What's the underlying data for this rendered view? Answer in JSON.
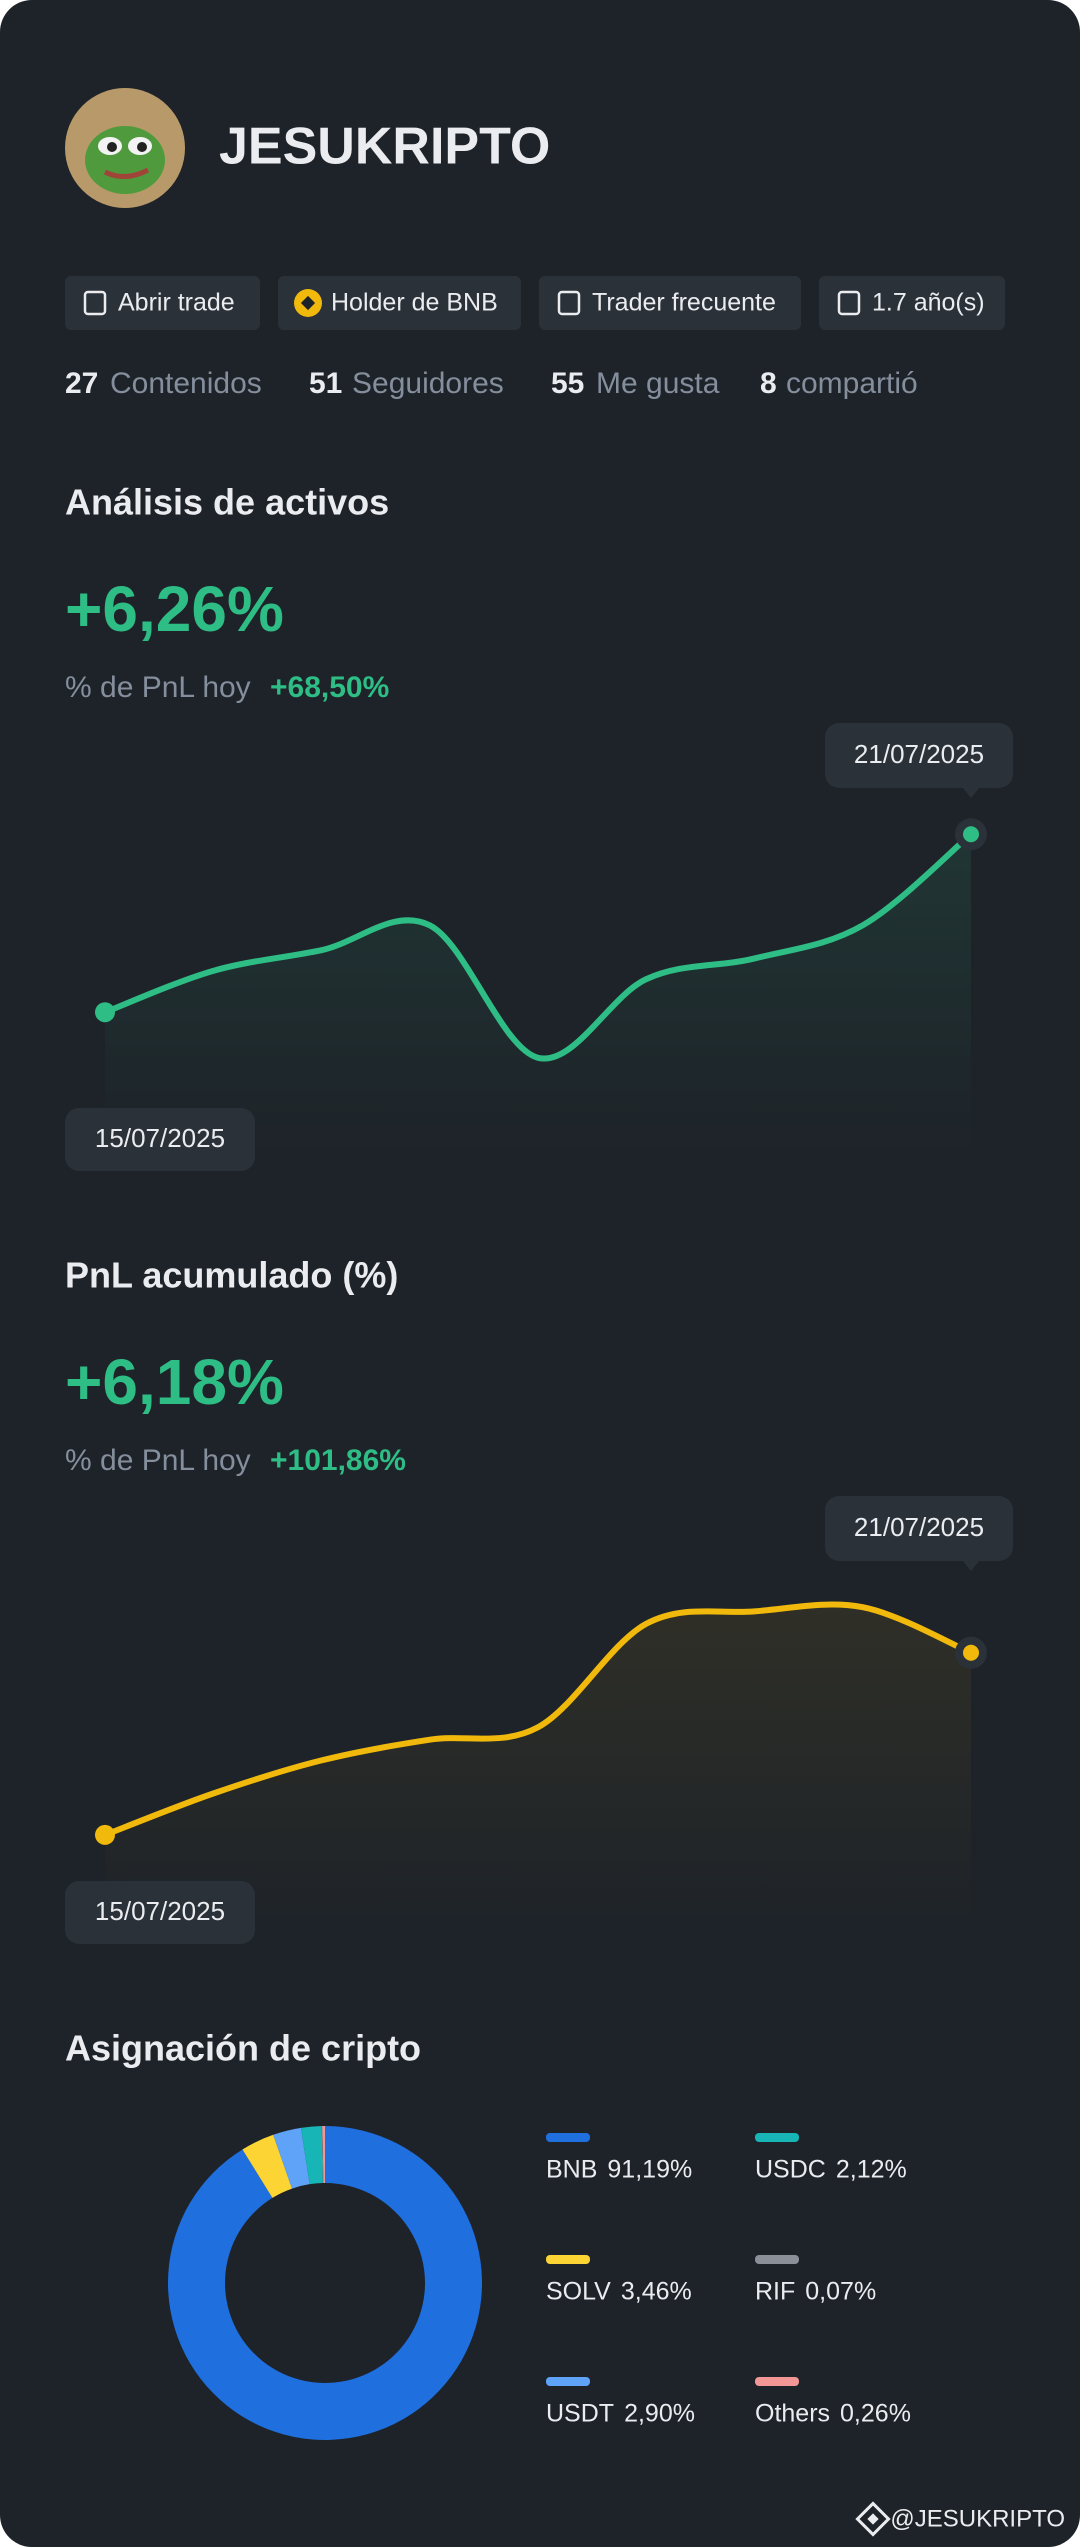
{
  "profile": {
    "name": "JESUKRIPTO",
    "badges": [
      "Abrir trade",
      "Holder de BNB",
      "Trader frecuente",
      "1.7 año(s)"
    ],
    "stats": [
      {
        "value": 27,
        "label": "Contenidos"
      },
      {
        "value": 51,
        "label": "Seguidores"
      },
      {
        "value": 55,
        "label": "Me gusta"
      },
      {
        "value": 8,
        "label": "compartió"
      }
    ]
  },
  "sections": [
    {
      "title": "Análisis de activos",
      "headline": "+6,26%",
      "subtitle_label": "% de PnL hoy",
      "subtitle_value": "+68,50%",
      "chart": {
        "type": "line",
        "color": "#2ebd85",
        "values": [
          34,
          44,
          49,
          55,
          23,
          42,
          47,
          55,
          77
        ],
        "ylim": [
          0,
          100
        ],
        "date_range": [
          "15/07/2025",
          "21/07/2025"
        ]
      }
    },
    {
      "title": "PnL acumulado (%)",
      "headline": "+6,18%",
      "subtitle_label": "% de PnL hoy",
      "subtitle_value": "+101,86%",
      "chart": {
        "type": "line",
        "color": "#f0b90b",
        "values": [
          22,
          32,
          40,
          45,
          48,
          73,
          76,
          77,
          66
        ],
        "ylim": [
          0,
          100
        ],
        "date_range": [
          "15/07/2025",
          "21/07/2025"
        ]
      }
    }
  ],
  "allocation": {
    "title": "Asignación de cripto",
    "chart": {
      "type": "pie",
      "categories": [
        "BNB",
        "SOLV",
        "USDT",
        "USDC",
        "RIF",
        "Others"
      ],
      "values": [
        91.19,
        3.46,
        2.9,
        2.12,
        0.07,
        0.26
      ],
      "value_labels": [
        "91,19%",
        "3,46%",
        "2,90%",
        "2,12%",
        "0,07%",
        "0,26%"
      ],
      "colors": [
        "#1f6fdf",
        "#fcd535",
        "#5ea3f7",
        "#17b5b5",
        "#8a8f98",
        "#f29696"
      ]
    }
  },
  "footer": "@JESUKRIPTO"
}
